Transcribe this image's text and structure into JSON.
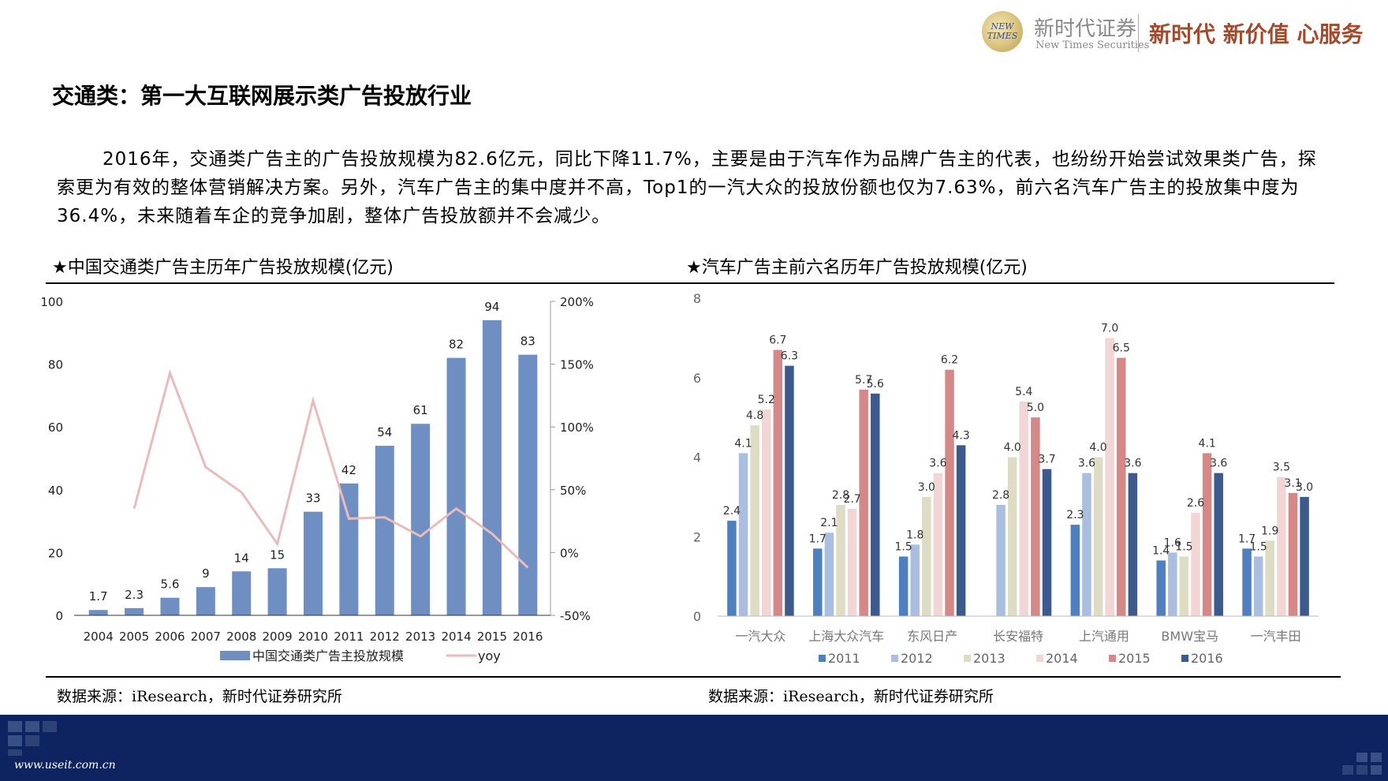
{
  "logo": {
    "badge_text": "NEW TIMES",
    "name_cn": "新时代证券",
    "name_en": "New Times Securities",
    "slogan": "新时代 新价值 心服务"
  },
  "page_title": "交通类：第一大互联网展示类广告投放行业",
  "body_text": "2016年，交通类广告主的广告投放规模为82.6亿元，同比下降11.7%，主要是由于汽车作为品牌广告主的代表，也纷纷开始尝试效果类广告，探索更为有效的整体营销解决方案。另外，汽车广告主的集中度并不高，Top1的一汽大众的投放份额也仅为7.63%，前六名汽车广告主的投放集中度为36.4%，未来随着车企的竞争加剧，整体广告投放额并不会减少。",
  "chart_titles": [
    "★中国交通类广告主历年广告投放规模(亿元)",
    "★汽车广告主前六名历年广告投放规模(亿元)"
  ],
  "sources": [
    "数据来源：iResearch，新时代证券研究所",
    "数据来源：iResearch，新时代证券研究所"
  ],
  "footer_url": "www.useit.com.cn",
  "chart_data": [
    {
      "type": "bar",
      "title": "中国交通类广告主历年广告投放规模(亿元)",
      "categories": [
        "2004",
        "2005",
        "2006",
        "2007",
        "2008",
        "2009",
        "2010",
        "2011",
        "2012",
        "2013",
        "2014",
        "2015",
        "2016"
      ],
      "series": [
        {
          "name": "中国交通类广告主投放规模",
          "type": "bar",
          "axis": "left",
          "color": "#6f8fc3",
          "values": [
            1.7,
            2.3,
            5.6,
            9,
            14,
            15,
            33,
            42,
            54,
            61,
            82,
            94,
            83
          ],
          "labels": [
            "1.7",
            "2.3",
            "5.6",
            "9",
            "14",
            "15",
            "33",
            "42",
            "54",
            "61",
            "82",
            "94",
            "83"
          ]
        },
        {
          "name": "yoy",
          "type": "line",
          "axis": "right",
          "color": "#e9bcbc",
          "values": [
            null,
            35,
            143,
            68,
            48,
            7,
            121,
            27,
            28,
            13,
            35,
            15,
            -12
          ]
        }
      ],
      "y_left": {
        "min": 0,
        "max": 100,
        "ticks": [
          0,
          20,
          40,
          60,
          80,
          100
        ],
        "tick_labels": [
          "0",
          "20",
          "40",
          "60",
          "80",
          "100"
        ]
      },
      "y_right": {
        "min": -50,
        "max": 200,
        "ticks": [
          -50,
          0,
          50,
          100,
          150,
          200
        ],
        "tick_labels": [
          "-50%",
          "0%",
          "50%",
          "100%",
          "150%",
          "200%"
        ]
      },
      "legend": "bottom"
    },
    {
      "type": "bar",
      "title": "汽车广告主前六名历年广告投放规模(亿元)",
      "categories": [
        "一汽大众",
        "上海大众汽车",
        "东风日产",
        "长安福特",
        "上汽通用",
        "BMW宝马",
        "一汽丰田"
      ],
      "series": [
        {
          "name": "2011",
          "color": "#4f7fbf",
          "values": [
            2.4,
            1.7,
            1.5,
            null,
            2.3,
            1.4,
            1.7
          ]
        },
        {
          "name": "2012",
          "color": "#aabee0",
          "values": [
            4.1,
            2.1,
            1.8,
            2.8,
            3.6,
            1.6,
            1.5
          ]
        },
        {
          "name": "2013",
          "color": "#dedcc4",
          "values": [
            4.8,
            2.8,
            3.0,
            4.0,
            4.0,
            1.5,
            1.9
          ]
        },
        {
          "name": "2014",
          "color": "#f2d6d6",
          "values": [
            5.2,
            2.7,
            3.6,
            5.4,
            7.0,
            2.6,
            3.5
          ]
        },
        {
          "name": "2015",
          "color": "#d58888",
          "values": [
            6.7,
            5.7,
            6.2,
            5.0,
            6.5,
            4.1,
            3.1
          ]
        },
        {
          "name": "2016",
          "color": "#3c5a8c",
          "values": [
            6.3,
            5.6,
            4.3,
            3.7,
            3.6,
            3.6,
            3.0
          ]
        }
      ],
      "y": {
        "min": 0,
        "max": 8,
        "ticks": [
          0,
          2,
          4,
          6,
          8
        ],
        "tick_labels": [
          "0",
          "2",
          "4",
          "6",
          "8"
        ]
      },
      "legend": "bottom"
    }
  ]
}
